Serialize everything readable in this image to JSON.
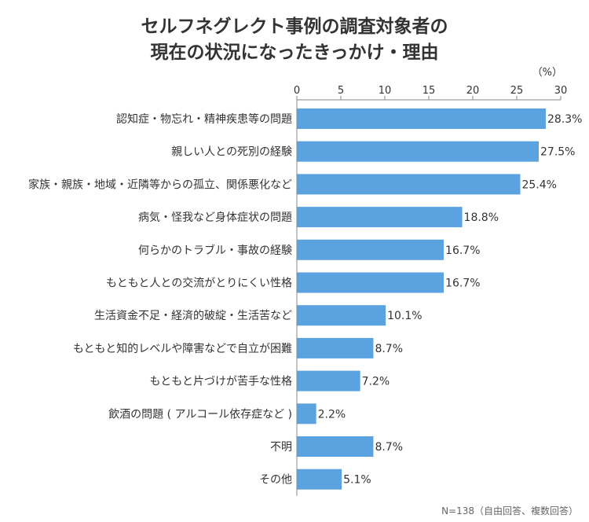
{
  "chart_data": {
    "type": "bar",
    "orientation": "horizontal",
    "title": [
      "セルフネグレクト事例の調査対象者の",
      "現在の状況になったきっかけ・理由"
    ],
    "unit_label": "（%）",
    "xlim": [
      0,
      30
    ],
    "x_ticks": [
      "0",
      "5",
      "10",
      "15",
      "20",
      "25",
      "30"
    ],
    "categories": [
      "認知症・物忘れ・精神疾患等の問題",
      "親しい人との死別の経験",
      "家族・親族・地域・近隣等からの孤立、関係悪化など",
      "病気・怪我など身体症状の問題",
      "何らかのトラブル・事故の経験",
      "もともと人との交流がとりにくい性格",
      "生活資金不足・経済的破綻・生活苦など",
      "もともと知的レベルや障害などで自立が困難",
      "もともと片づけが苦手な性格",
      "飲酒の問題 ( アルコール依存症など )",
      "不明",
      "その他"
    ],
    "values": [
      28.3,
      27.5,
      25.4,
      18.8,
      16.7,
      16.7,
      10.1,
      8.7,
      7.2,
      2.2,
      8.7,
      5.1
    ],
    "value_labels": [
      "28.3%",
      "27.5%",
      "25.4%",
      "18.8%",
      "16.7%",
      "16.7%",
      "10.1%",
      "8.7%",
      "7.2%",
      "2.2%",
      "8.7%",
      "5.1%"
    ],
    "bar_color": "#5aa3e0",
    "axis_color": "#888888",
    "text_color": "#333333",
    "grid": false,
    "legend": "none",
    "note": "N=138（自由回答、複数回答）"
  }
}
